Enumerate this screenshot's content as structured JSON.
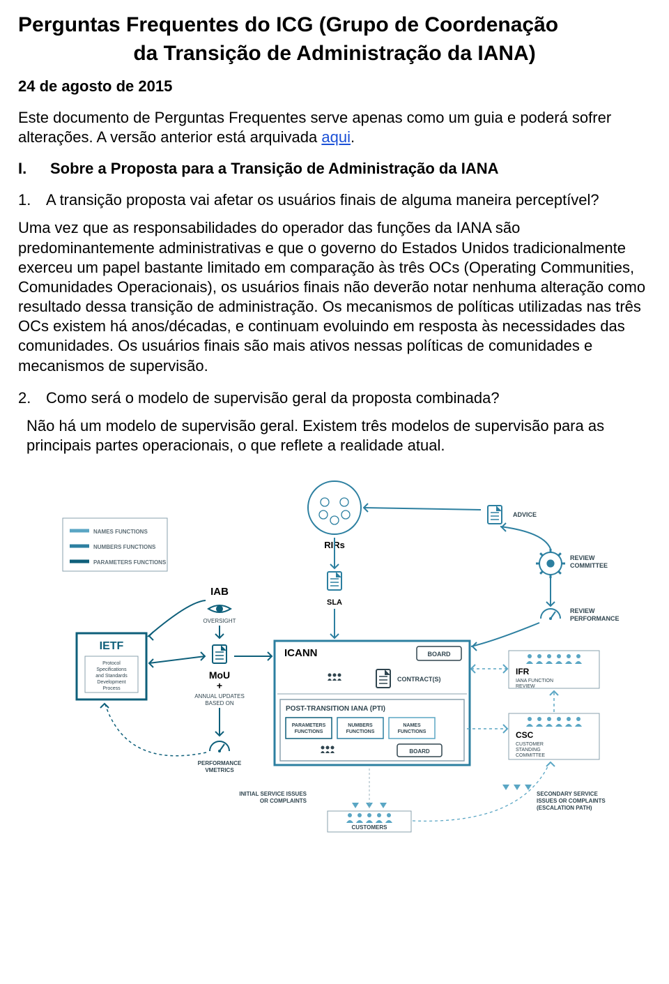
{
  "title_line1": "Perguntas Frequentes do ICG (Grupo de Coordenação",
  "title_line2": "da Transição de Administração da IANA)",
  "date": "24 de agosto de 2015",
  "intro_before": "Este documento de Perguntas Frequentes serve apenas como um guia e poderá sofrer alterações. A versão anterior está arquivada ",
  "intro_link": "aqui",
  "intro_after": ".",
  "section": {
    "roman": "I.",
    "title": "Sobre a Proposta para a Transição de Administração da IANA"
  },
  "q1": {
    "num": "1.",
    "text": "A transição proposta vai afetar os usuários finais de alguma maneira perceptível?",
    "answer": "Uma vez que as responsabilidades do operador das funções da IANA são predominantemente administrativas e que o governo do Estados Unidos tradicionalmente exerceu um papel bastante limitado em comparação às três OCs (Operating Communities, Comunidades Operacionais), os usuários finais não deverão notar nenhuma alteração como resultado dessa transição de administração. Os mecanismos de políticas utilizadas nas três OCs existem há anos/décadas, e continuam evoluindo em resposta às necessidades das comunidades. Os usuários finais são mais ativos nessas políticas de comunidades e mecanismos de supervisão."
  },
  "q2": {
    "num": "2.",
    "text": "Como será o modelo de supervisão geral da proposta combinada?",
    "answer": "Não há um modelo de supervisão geral. Existem três modelos de supervisão para as principais partes operacionais, o que reflete a realidade atual."
  },
  "diagram": {
    "colors": {
      "names": "#5aa6c4",
      "numbers": "#2c7fa0",
      "parameters": "#0e5f7a",
      "box_border": "#2c7fa0",
      "thin_border": "#8aa0ad",
      "text_dark": "#30454f",
      "text_black": "#000000",
      "dashed": "#9ab1bc",
      "legend_label": "#5e6e76"
    },
    "legend": {
      "title_color": "#5e6e76",
      "items": [
        {
          "label": "NAMES FUNCTIONS",
          "color": "#5aa6c4"
        },
        {
          "label": "NUMBERS FUNCTIONS",
          "color": "#2c7fa0"
        },
        {
          "label": "PARAMETERS FUNCTIONS",
          "color": "#0e5f7a"
        }
      ]
    },
    "labels": {
      "rirs": "RIRs",
      "advice": "ADVICE",
      "review_committee": "REVIEW\nCOMMITTEE",
      "review_performance": "REVIEW\nPERFORMANCE",
      "sla": "SLA",
      "iab": "IAB",
      "oversight": "OVERSIGHT",
      "ietf": "IETF",
      "ietf_sub": "Protocol\nSpecifications\nand Standards\nDevelopment\nProcess",
      "mou": "MoU",
      "plus": "+",
      "annual": "ANNUAL UPDATES\nBASED ON",
      "perf_metrics": "PERFORMANCE\nVMETRICS",
      "icann": "ICANN",
      "board": "BOARD",
      "contracts": "CONTRACT(S)",
      "pti": "POST-TRANSITION IANA (PTI)",
      "pti_params": "PARAMETERS\nFUNCTIONS",
      "pti_numbers": "NUMBERS\nFUNCTIONS",
      "pti_names": "NAMES\nFUNCTIONS",
      "ifr": "IFR",
      "ifr_sub": "IANA FUNCTION\nREVIEW",
      "csc": "CSC",
      "csc_sub": "CUSTOMER\nSTANDING\nCOMMITTEE",
      "initial": "INITIAL SERVICE ISSUES\nOR COMPLAINTS",
      "secondary": "SECONDARY SERVICE\nISSUES OR COMPLAINTS\n(ESCALATION PATH)",
      "customers": "CUSTOMERS"
    }
  }
}
